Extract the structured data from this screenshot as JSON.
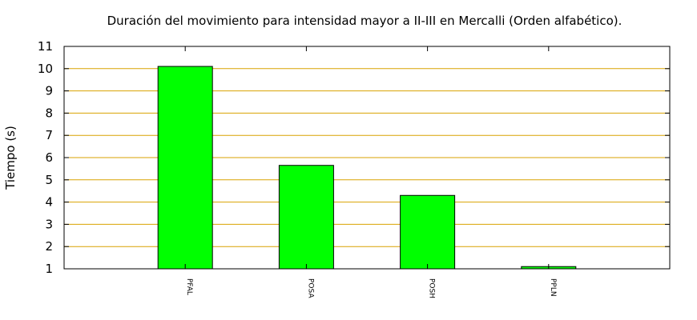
{
  "chart_data": {
    "type": "bar",
    "title": "Duración del movimiento para intensidad mayor a II-III en Mercalli (Orden alfabético).",
    "xlabel": "",
    "ylabel": "Tiempo (s)",
    "categories": [
      "PFAL",
      "POSA",
      "POSH",
      "PPLN"
    ],
    "values": [
      10.1,
      5.65,
      4.3,
      1.1
    ],
    "ylim": [
      1,
      11
    ],
    "yticks": [
      1,
      2,
      3,
      4,
      5,
      6,
      7,
      8,
      9,
      10,
      11
    ],
    "grid": true,
    "colors": {
      "bar": "#00ff00",
      "bar_edge": "#000000",
      "grid": "#d9a200"
    }
  }
}
